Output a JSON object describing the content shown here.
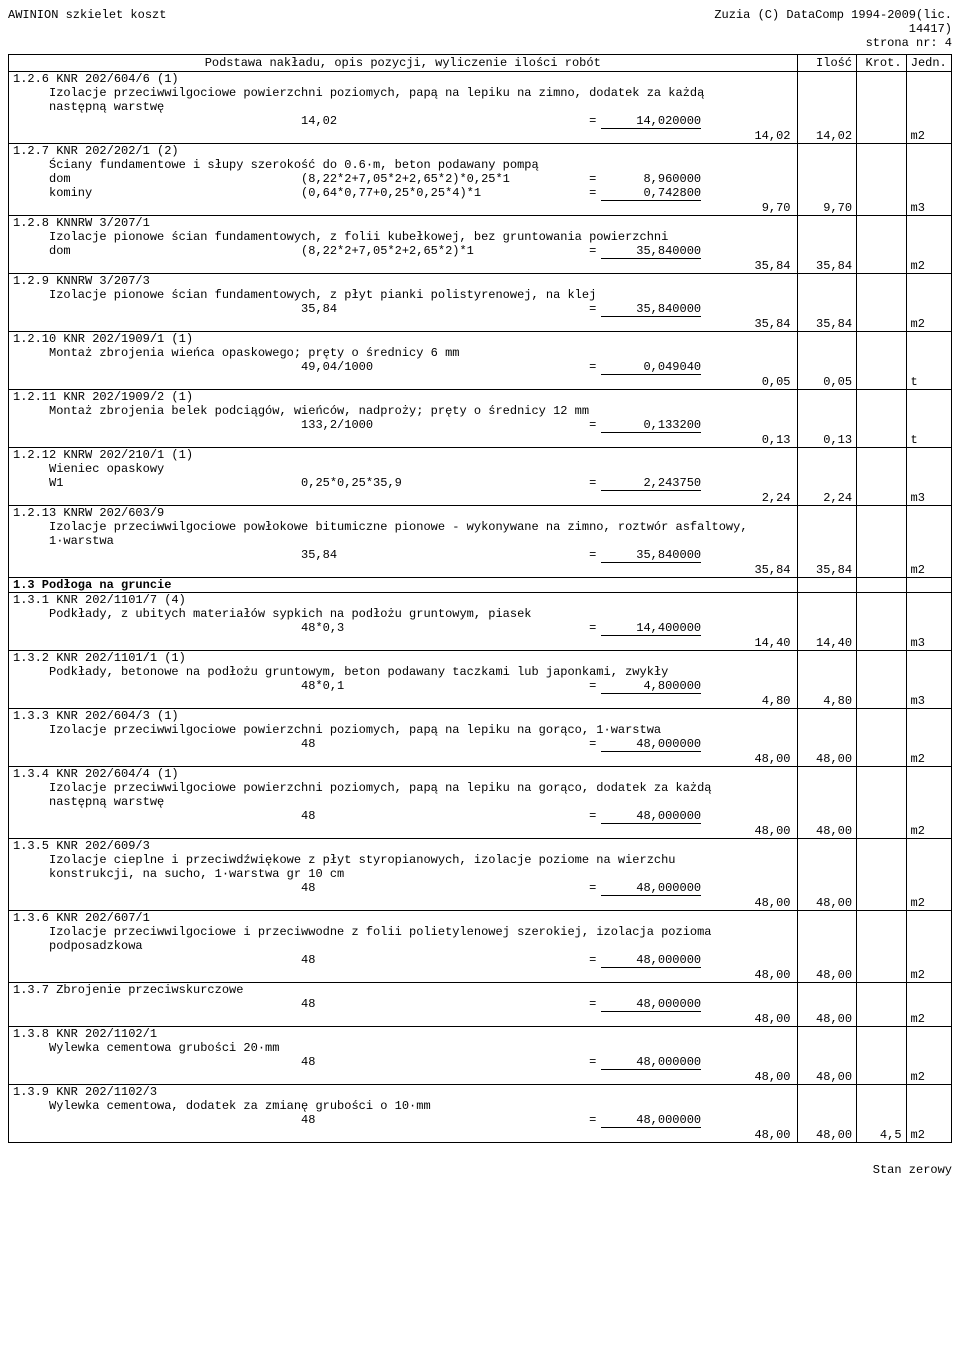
{
  "header": {
    "left": "AWINION szkielet koszt",
    "right1": "Zuzia (C) DataComp 1994-2009(lic.",
    "right2": "14417)",
    "right3": "strona nr:    4"
  },
  "columns": {
    "desc": "Podstawa nakładu, opis pozycji, wyliczenie ilości robót",
    "ilosc": "Ilość",
    "krot": "Krot.",
    "jedn": "Jedn."
  },
  "rows": [
    {
      "type": "item",
      "code": "1.2.6 KNR 202/604/6 (1)",
      "desc": "Izolacje przeciwwilgociowe powierzchni poziomych, papą na lepiku na zimno, dodatek za każdą następną warstwę",
      "calcs": [
        {
          "expr": "14,02",
          "res": "14,020000",
          "ul": true
        }
      ],
      "sum": "14,02",
      "ilosc": "14,02",
      "jedn": "m2"
    },
    {
      "type": "item",
      "code": "1.2.7 KNR 202/202/1 (2)",
      "desc": "Ściany fundamentowe i słupy  szerokość do 0.6·m, beton podawany pompą",
      "calcs": [
        {
          "label": "dom",
          "expr": "(8,22*2+7,05*2+2,65*2)*0,25*1",
          "res": "8,960000",
          "ul": false
        },
        {
          "label": "kominy",
          "expr": "(0,64*0,77+0,25*0,25*4)*1",
          "res": "0,742800",
          "ul": true
        }
      ],
      "sum": "9,70",
      "ilosc": "9,70",
      "jedn": "m3"
    },
    {
      "type": "item",
      "code": "1.2.8 KNNRW 3/207/1",
      "desc": "Izolacje pionowe ścian fundamentowych, z folii kubełkowej, bez gruntowania powierzchni",
      "calcs": [
        {
          "label": "dom",
          "expr": "(8,22*2+7,05*2+2,65*2)*1",
          "res": "35,840000",
          "ul": true
        }
      ],
      "sum": "35,84",
      "ilosc": "35,84",
      "jedn": "m2"
    },
    {
      "type": "item",
      "code": "1.2.9 KNNRW 3/207/3",
      "desc": "Izolacje pionowe ścian fundamentowych, z płyt pianki polistyrenowej, na klej",
      "calcs": [
        {
          "expr": "35,84",
          "res": "35,840000",
          "ul": true
        }
      ],
      "sum": "35,84",
      "ilosc": "35,84",
      "jedn": "m2"
    },
    {
      "type": "item",
      "code": "1.2.10 KNR 202/1909/1 (1)",
      "desc": "Montaż zbrojenia wieńca opaskowego; pręty o średnicy 6 mm",
      "calcs": [
        {
          "expr": "49,04/1000",
          "res": "0,049040",
          "ul": true
        }
      ],
      "sum": "0,05",
      "ilosc": "0,05",
      "jedn": "t"
    },
    {
      "type": "item",
      "code": "1.2.11 KNR 202/1909/2 (1)",
      "desc": "Montaż zbrojenia belek podciągów, wieńców, nadproży; pręty o średnicy 12 mm",
      "calcs": [
        {
          "expr": "133,2/1000",
          "res": "0,133200",
          "ul": true
        }
      ],
      "sum": "0,13",
      "ilosc": "0,13",
      "jedn": "t"
    },
    {
      "type": "item",
      "code": "1.2.12 KNRW 202/210/1 (1)",
      "desc": "Wieniec opaskowy",
      "calcs": [
        {
          "label": "W1",
          "expr": "0,25*0,25*35,9",
          "res": "2,243750",
          "ul": true
        }
      ],
      "sum": "2,24",
      "ilosc": "2,24",
      "jedn": "m3"
    },
    {
      "type": "item",
      "code": "1.2.13 KNRW 202/603/9",
      "desc": "Izolacje przeciwwilgociowe powłokowe bitumiczne pionowe - wykonywane na zimno, roztwór asfaltowy, 1·warstwa",
      "calcs": [
        {
          "expr": "35,84",
          "res": "35,840000",
          "ul": true
        }
      ],
      "sum": "35,84",
      "ilosc": "35,84",
      "jedn": "m2"
    },
    {
      "type": "section",
      "code": "1.3 Podłoga na gruncie"
    },
    {
      "type": "item",
      "code": "1.3.1 KNR 202/1101/7 (4)",
      "desc": "Podkłady, z ubitych materiałów sypkich na podłożu gruntowym, piasek",
      "calcs": [
        {
          "expr": "48*0,3",
          "res": "14,400000",
          "ul": true
        }
      ],
      "sum": "14,40",
      "ilosc": "14,40",
      "jedn": "m3"
    },
    {
      "type": "item",
      "code": "1.3.2 KNR 202/1101/1 (1)",
      "desc": "Podkłady, betonowe na podłożu gruntowym, beton podawany taczkami lub japonkami, zwykły",
      "calcs": [
        {
          "expr": "48*0,1",
          "res": "4,800000",
          "ul": true
        }
      ],
      "sum": "4,80",
      "ilosc": "4,80",
      "jedn": "m3"
    },
    {
      "type": "item",
      "code": "1.3.3 KNR 202/604/3 (1)",
      "desc": "Izolacje przeciwwilgociowe powierzchni poziomych, papą na lepiku na gorąco, 1·warstwa",
      "calcs": [
        {
          "expr": "48",
          "res": "48,000000",
          "ul": true
        }
      ],
      "sum": "48,00",
      "ilosc": "48,00",
      "jedn": "m2"
    },
    {
      "type": "item",
      "code": "1.3.4 KNR 202/604/4 (1)",
      "desc": "Izolacje przeciwwilgociowe powierzchni poziomych, papą na lepiku na gorąco, dodatek za każdą następną warstwę",
      "calcs": [
        {
          "expr": "48",
          "res": "48,000000",
          "ul": true
        }
      ],
      "sum": "48,00",
      "ilosc": "48,00",
      "jedn": "m2"
    },
    {
      "type": "item",
      "code": "1.3.5 KNR 202/609/3",
      "desc": "Izolacje cieplne i przeciwdźwiękowe z płyt styropianowych, izolacje poziome na wierzchu konstrukcji, na sucho, 1·warstwa gr 10 cm",
      "calcs": [
        {
          "expr": "48",
          "res": "48,000000",
          "ul": true
        }
      ],
      "sum": "48,00",
      "ilosc": "48,00",
      "jedn": "m2"
    },
    {
      "type": "item",
      "code": "1.3.6 KNR 202/607/1",
      "desc": "Izolacje przeciwwilgociowe i przeciwwodne z folii polietylenowej szerokiej, izolacja pozioma podposadzkowa",
      "calcs": [
        {
          "expr": "48",
          "res": "48,000000",
          "ul": true
        }
      ],
      "sum": "48,00",
      "ilosc": "48,00",
      "jedn": "m2"
    },
    {
      "type": "item",
      "code": "1.3.7 Zbrojenie przeciwskurczowe",
      "desc": "",
      "calcs": [
        {
          "expr": "48",
          "res": "48,000000",
          "ul": true
        }
      ],
      "sum": "48,00",
      "ilosc": "48,00",
      "jedn": "m2"
    },
    {
      "type": "item",
      "code": "1.3.8 KNR 202/1102/1",
      "desc": "Wylewka cementowa grubości 20·mm",
      "calcs": [
        {
          "expr": "48",
          "res": "48,000000",
          "ul": true
        }
      ],
      "sum": "48,00",
      "ilosc": "48,00",
      "jedn": "m2"
    },
    {
      "type": "item",
      "code": "1.3.9 KNR 202/1102/3",
      "desc": "Wylewka cementowa, dodatek za zmianę grubości o 10·mm",
      "calcs": [
        {
          "expr": "48",
          "res": "48,000000",
          "ul": true
        }
      ],
      "sum": "48,00",
      "ilosc": "48,00",
      "krot": "4,5",
      "jedn": "m2",
      "last": true
    }
  ],
  "footer": "Stan zerowy"
}
